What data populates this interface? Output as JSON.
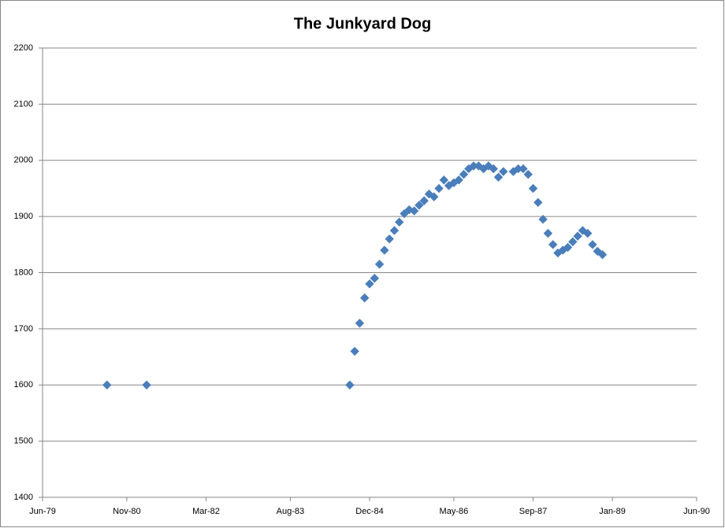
{
  "chart_data": {
    "type": "scatter",
    "title": "The Junkyard Dog",
    "x": [
      "1980-07",
      "1981-03",
      "1984-08",
      "1984-09",
      "1984-10",
      "1984-11",
      "1984-12",
      "1985-01",
      "1985-02",
      "1985-03",
      "1985-04",
      "1985-05",
      "1985-06",
      "1985-07",
      "1985-08",
      "1985-09",
      "1985-10",
      "1985-11",
      "1985-12",
      "1986-01",
      "1986-02",
      "1986-03",
      "1986-04",
      "1986-05",
      "1986-06",
      "1986-07",
      "1986-08",
      "1986-09",
      "1986-10",
      "1986-11",
      "1986-12",
      "1987-01",
      "1987-02",
      "1987-03",
      "1987-05",
      "1987-06",
      "1987-07",
      "1987-08",
      "1987-09",
      "1987-10",
      "1987-11",
      "1987-12",
      "1988-01",
      "1988-02",
      "1988-03",
      "1988-04",
      "1988-05",
      "1988-06",
      "1988-07",
      "1988-08",
      "1988-09",
      "1988-10",
      "1988-11"
    ],
    "values": [
      1600,
      1600,
      1600,
      1660,
      1710,
      1755,
      1780,
      1790,
      1815,
      1840,
      1860,
      1875,
      1890,
      1905,
      1912,
      1910,
      1920,
      1928,
      1940,
      1935,
      1950,
      1965,
      1955,
      1960,
      1965,
      1975,
      1985,
      1990,
      1990,
      1985,
      1990,
      1985,
      1970,
      1980,
      1980,
      1985,
      1985,
      1975,
      1950,
      1925,
      1895,
      1870,
      1850,
      1835,
      1840,
      1845,
      1855,
      1865,
      1875,
      1870,
      1850,
      1838,
      1832
    ],
    "color": "#4a7ebb",
    "xlim": [
      "1979-06",
      "1990-06"
    ],
    "xticks": [
      {
        "value": "1979-06",
        "label": "Jun-79"
      },
      {
        "value": "1980-11",
        "label": "Nov-80"
      },
      {
        "value": "1982-03",
        "label": "Mar-82"
      },
      {
        "value": "1983-08",
        "label": "Aug-83"
      },
      {
        "value": "1984-12",
        "label": "Dec-84"
      },
      {
        "value": "1986-05",
        "label": "May-86"
      },
      {
        "value": "1987-09",
        "label": "Sep-87"
      },
      {
        "value": "1989-01",
        "label": "Jan-89"
      },
      {
        "value": "1990-06",
        "label": "Jun-90"
      }
    ],
    "ylim": [
      1400,
      2200
    ],
    "yticks": [
      1400,
      1500,
      1600,
      1700,
      1800,
      1900,
      2000,
      2100,
      2200
    ],
    "grid": true
  }
}
